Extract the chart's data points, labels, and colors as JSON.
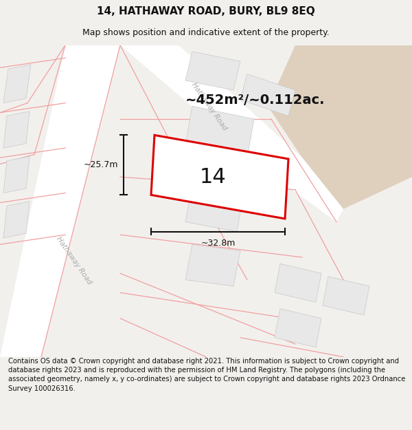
{
  "title": "14, HATHAWAY ROAD, BURY, BL9 8EQ",
  "subtitle": "Map shows position and indicative extent of the property.",
  "footer": "Contains OS data © Crown copyright and database right 2021. This information is subject to Crown copyright and database rights 2023 and is reproduced with the permission of HM Land Registry. The polygons (including the associated geometry, namely x, y co-ordinates) are subject to Crown copyright and database rights 2023 Ordnance Survey 100026316.",
  "area_label": "~452m²/~0.112ac.",
  "label_14": "14",
  "dim_width": "~32.8m",
  "dim_height": "~25.7m",
  "road_label_upper": "Hathaway Road",
  "road_label_lower": "Hathaway Road",
  "bg_color": "#f2f0ed",
  "map_bg": "#ffffff",
  "block_fill": "#e8e8e8",
  "plot_fill": "#f0eeeb",
  "tan_fill": "#dfd0be",
  "red_outline": "#dd0000",
  "pink_line": "#f0a0a0",
  "dark_line": "#111111",
  "road_label_color": "#aaaaaa",
  "title_fontsize": 11,
  "subtitle_fontsize": 9,
  "footer_fontsize": 7.2,
  "area_fontsize": 14,
  "label14_fontsize": 22,
  "dim_fontsize": 9
}
